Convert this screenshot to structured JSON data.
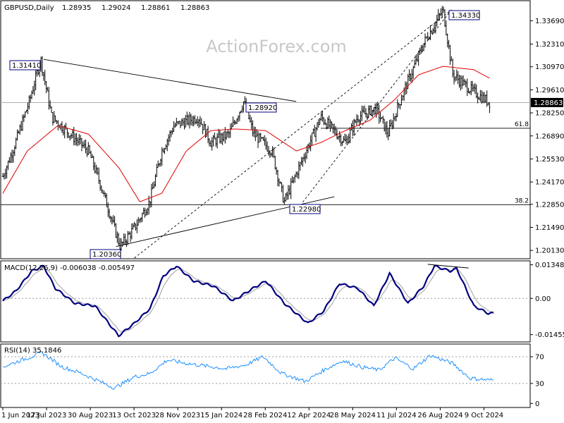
{
  "chart_data": {
    "type": "ohlc",
    "symbol": "GBPUSD",
    "timeframe": "Daily",
    "header_ohlc": [
      "1.28935",
      "1.29024",
      "1.28861",
      "1.28863"
    ],
    "watermark": "ActionForex.com",
    "colors": {
      "background": "#ffffff",
      "bars": "#000000",
      "ma": "#e00000",
      "macd_main": "#000080",
      "macd_signal": "#a0a0a0",
      "rsi": "#1e90ff",
      "current_price_bg": "#000000"
    },
    "price_axis": {
      "ticks": [
        "1.33690",
        "1.32310",
        "1.30970",
        "1.29610",
        "1.28250",
        "1.26890",
        "1.25530",
        "1.24170",
        "1.22850",
        "1.21490",
        "1.20130"
      ],
      "ylim": [
        1.1968,
        1.3483
      ]
    },
    "current_price_label": "1.28863",
    "x_axis": {
      "tick_labels": [
        "1 Jun 2023",
        "17 Jul 2023",
        "30 Aug 2023",
        "13 Oct 2023",
        "28 Nov 2023",
        "15 Jan 2024",
        "28 Feb 2024",
        "12 Apr 2024",
        "28 May 2024",
        "11 Jul 2024",
        "26 Aug 2024",
        "9 Oct 2024"
      ],
      "tick_bar_index": [
        0,
        32,
        64,
        96,
        128,
        160,
        192,
        224,
        256,
        288,
        320,
        352
      ]
    },
    "bar_count": 371,
    "price_path_anchors": [
      [
        0,
        1.245
      ],
      [
        8,
        1.26
      ],
      [
        22,
        1.29
      ],
      [
        31,
        1.3141
      ],
      [
        40,
        1.28
      ],
      [
        55,
        1.27
      ],
      [
        70,
        1.26
      ],
      [
        80,
        1.24
      ],
      [
        96,
        1.2036
      ],
      [
        108,
        1.215
      ],
      [
        120,
        1.23
      ],
      [
        130,
        1.26
      ],
      [
        140,
        1.275
      ],
      [
        160,
        1.28
      ],
      [
        170,
        1.265
      ],
      [
        185,
        1.27
      ],
      [
        197,
        1.2892
      ],
      [
        205,
        1.27
      ],
      [
        220,
        1.26
      ],
      [
        230,
        1.2298
      ],
      [
        242,
        1.25
      ],
      [
        260,
        1.28
      ],
      [
        280,
        1.265
      ],
      [
        290,
        1.28
      ],
      [
        305,
        1.285
      ],
      [
        315,
        1.27
      ],
      [
        325,
        1.29
      ],
      [
        345,
        1.325
      ],
      [
        360,
        1.3433
      ],
      [
        368,
        1.305
      ],
      [
        376,
        1.3
      ],
      [
        385,
        1.295
      ],
      [
        398,
        1.2886
      ]
    ],
    "moving_average_anchors": [
      [
        0,
        1.235
      ],
      [
        20,
        1.26
      ],
      [
        45,
        1.275
      ],
      [
        70,
        1.27
      ],
      [
        95,
        1.25
      ],
      [
        112,
        1.23
      ],
      [
        130,
        1.235
      ],
      [
        150,
        1.26
      ],
      [
        170,
        1.272
      ],
      [
        190,
        1.273
      ],
      [
        215,
        1.272
      ],
      [
        240,
        1.26
      ],
      [
        260,
        1.265
      ],
      [
        280,
        1.272
      ],
      [
        300,
        1.278
      ],
      [
        320,
        1.29
      ],
      [
        340,
        1.305
      ],
      [
        360,
        1.31
      ],
      [
        385,
        1.308
      ],
      [
        398,
        1.303
      ]
    ],
    "swing_labels": [
      {
        "text": "1.31410",
        "bar": 31,
        "price": 1.3141
      },
      {
        "text": "1.28920",
        "bar": 197,
        "price": 1.2892
      },
      {
        "text": "1.34330",
        "bar": 340,
        "price": 1.3433
      },
      {
        "text": "1.20360",
        "bar": 86,
        "price": 1.2036
      },
      {
        "text": "1.22980",
        "bar": 226,
        "price": 1.2298
      }
    ],
    "horizontal_levels": [
      {
        "label": "61.8",
        "price": 1.2734
      },
      {
        "label": "38.2",
        "price": 1.2283
      }
    ],
    "reference_line_price": 1.2886,
    "trendlines": [
      {
        "style": "solid",
        "from": [
          31,
          1.3141
        ],
        "to": [
          223,
          1.2892
        ]
      },
      {
        "style": "solid",
        "from": [
          86,
          1.2036
        ],
        "to": [
          252,
          1.233
        ]
      },
      {
        "style": "dashed",
        "from": [
          100,
          1.1968
        ],
        "to": [
          341,
          1.3433
        ]
      },
      {
        "style": "dashed",
        "from": [
          228,
          1.2298
        ],
        "to": [
          341,
          1.3433
        ]
      }
    ],
    "macd": {
      "label": "MACD(12,26,9) -0.006038 -0.005497",
      "ticks": [
        "0.013489",
        "0.00",
        "-0.014554"
      ],
      "ylim": [
        -0.0172,
        0.0148
      ],
      "main_anchors": [
        [
          0,
          -0.001
        ],
        [
          10,
          0.003
        ],
        [
          22,
          0.011
        ],
        [
          31,
          0.013
        ],
        [
          40,
          0.004
        ],
        [
          55,
          -0.002
        ],
        [
          70,
          -0.003
        ],
        [
          88,
          -0.015
        ],
        [
          100,
          -0.01
        ],
        [
          112,
          -0.004
        ],
        [
          122,
          0.009
        ],
        [
          132,
          0.013
        ],
        [
          145,
          0.007
        ],
        [
          160,
          0.005
        ],
        [
          175,
          -0.001
        ],
        [
          190,
          0.004
        ],
        [
          200,
          0.007
        ],
        [
          214,
          -0.002
        ],
        [
          232,
          -0.01
        ],
        [
          244,
          -0.005
        ],
        [
          256,
          0.006
        ],
        [
          270,
          0.004
        ],
        [
          282,
          -0.003
        ],
        [
          294,
          0.01
        ],
        [
          308,
          -0.002
        ],
        [
          320,
          0.005
        ],
        [
          328,
          0.013
        ],
        [
          340,
          0.011
        ],
        [
          345,
          0.012
        ],
        [
          358,
          -0.003
        ],
        [
          369,
          -0.006
        ],
        [
          373,
          -0.006
        ]
      ],
      "divergence_line": {
        "from": [
          323,
          0.0137
        ],
        "to": [
          354,
          0.0122
        ]
      }
    },
    "rsi": {
      "label": "RSI(14) 35.1846",
      "ticks": [
        "70",
        "30",
        "0"
      ],
      "ylim": [
        -5,
        88
      ],
      "anchors": [
        [
          0,
          55
        ],
        [
          10,
          62
        ],
        [
          30,
          76
        ],
        [
          45,
          55
        ],
        [
          60,
          45
        ],
        [
          85,
          23
        ],
        [
          100,
          40
        ],
        [
          112,
          45
        ],
        [
          125,
          65
        ],
        [
          140,
          60
        ],
        [
          155,
          56
        ],
        [
          170,
          52
        ],
        [
          185,
          58
        ],
        [
          198,
          70
        ],
        [
          212,
          45
        ],
        [
          230,
          33
        ],
        [
          244,
          50
        ],
        [
          258,
          64
        ],
        [
          272,
          55
        ],
        [
          286,
          50
        ],
        [
          298,
          68
        ],
        [
          312,
          52
        ],
        [
          325,
          72
        ],
        [
          342,
          60
        ],
        [
          355,
          38
        ],
        [
          369,
          35
        ],
        [
          373,
          35
        ]
      ]
    }
  }
}
